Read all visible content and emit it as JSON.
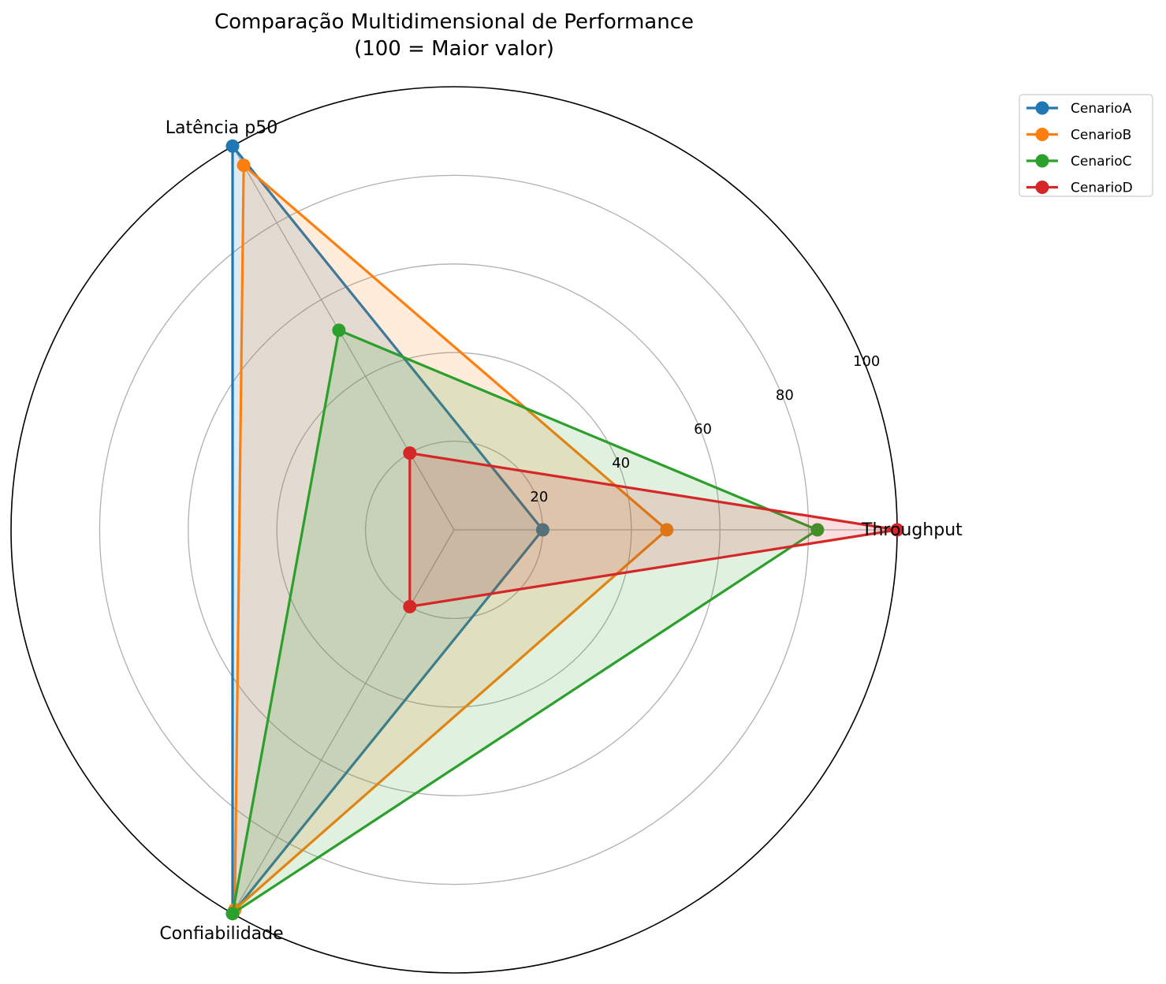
{
  "chart_data": {
    "type": "radar",
    "title": "Comparação Multidimensional de Performance",
    "subtitle": "(100 = Maior valor)",
    "axes": [
      "Throughput",
      "Latência p50",
      "Confiabilidade"
    ],
    "rlim": [
      0,
      100
    ],
    "rticks": [
      20,
      40,
      60,
      80,
      100
    ],
    "rtick_labels": [
      "20",
      "40",
      "60",
      "80",
      "100"
    ],
    "grid": true,
    "legend_position": "top-right, outside",
    "series": [
      {
        "name": "CenarioA",
        "color": "#1f77b4",
        "values": [
          20,
          100,
          100
        ]
      },
      {
        "name": "CenarioB",
        "color": "#ff7f0e",
        "values": [
          48,
          95,
          99
        ]
      },
      {
        "name": "CenarioC",
        "color": "#2ca02c",
        "values": [
          82,
          52,
          100
        ]
      },
      {
        "name": "CenarioD",
        "color": "#d62728",
        "values": [
          100,
          20,
          20
        ]
      }
    ]
  }
}
